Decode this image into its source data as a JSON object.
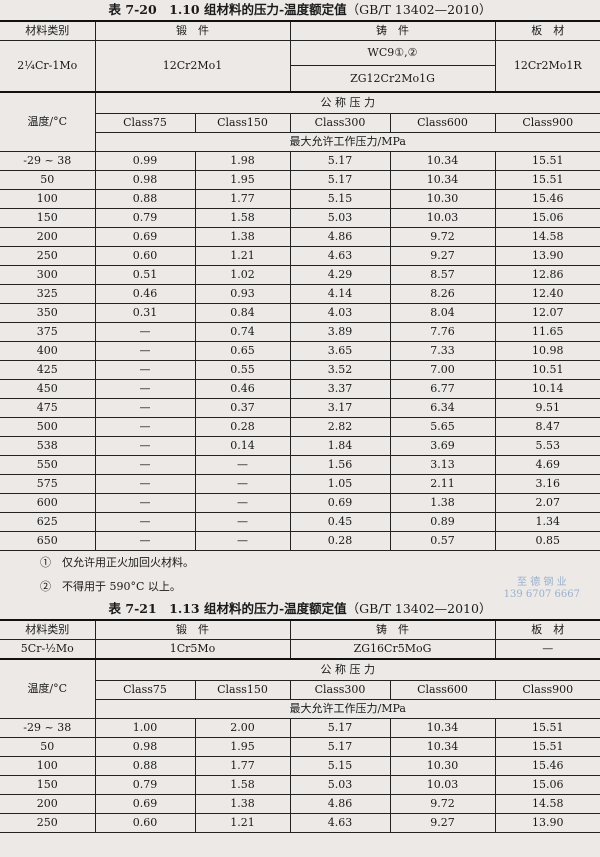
{
  "table1": {
    "title": "表 7-20　1.10 组材料的压力-温度额定值",
    "standard": "（GB/T 13402—2010）",
    "material_label": "材料类别",
    "forging_label": "锻　件",
    "casting_label": "铸　件",
    "plate_label": "板　材",
    "material": "2¼Cr-1Mo",
    "forging": "12Cr2Mo1",
    "casting1": "WC9①,②",
    "casting2": "ZG12Cr2Mo1G",
    "plate": "12Cr2Mo1R",
    "temp_label": "温度/°C",
    "nominal_label": "公 称 压 力",
    "classes": [
      "Class75",
      "Class150",
      "Class300",
      "Class600",
      "Class900"
    ],
    "max_label": "最大允许工作压力/MPa",
    "rows": [
      [
        "-29 ~ 38",
        "0.99",
        "1.98",
        "5.17",
        "10.34",
        "15.51"
      ],
      [
        "50",
        "0.98",
        "1.95",
        "5.17",
        "10.34",
        "15.51"
      ],
      [
        "100",
        "0.88",
        "1.77",
        "5.15",
        "10.30",
        "15.46"
      ],
      [
        "150",
        "0.79",
        "1.58",
        "5.03",
        "10.03",
        "15.06"
      ],
      [
        "200",
        "0.69",
        "1.38",
        "4.86",
        "9.72",
        "14.58"
      ],
      [
        "250",
        "0.60",
        "1.21",
        "4.63",
        "9.27",
        "13.90"
      ],
      [
        "300",
        "0.51",
        "1.02",
        "4.29",
        "8.57",
        "12.86"
      ],
      [
        "325",
        "0.46",
        "0.93",
        "4.14",
        "8.26",
        "12.40"
      ],
      [
        "350",
        "0.31",
        "0.84",
        "4.03",
        "8.04",
        "12.07"
      ],
      [
        "375",
        "—",
        "0.74",
        "3.89",
        "7.76",
        "11.65"
      ],
      [
        "400",
        "—",
        "0.65",
        "3.65",
        "7.33",
        "10.98"
      ],
      [
        "425",
        "—",
        "0.55",
        "3.52",
        "7.00",
        "10.51"
      ],
      [
        "450",
        "—",
        "0.46",
        "3.37",
        "6.77",
        "10.14"
      ],
      [
        "475",
        "—",
        "0.37",
        "3.17",
        "6.34",
        "9.51"
      ],
      [
        "500",
        "—",
        "0.28",
        "2.82",
        "5.65",
        "8.47"
      ],
      [
        "538",
        "—",
        "0.14",
        "1.84",
        "3.69",
        "5.53"
      ],
      [
        "550",
        "—",
        "—",
        "1.56",
        "3.13",
        "4.69"
      ],
      [
        "575",
        "—",
        "—",
        "1.05",
        "2.11",
        "3.16"
      ],
      [
        "600",
        "—",
        "—",
        "0.69",
        "1.38",
        "2.07"
      ],
      [
        "625",
        "—",
        "—",
        "0.45",
        "0.89",
        "1.34"
      ],
      [
        "650",
        "—",
        "—",
        "0.28",
        "0.57",
        "0.85"
      ]
    ]
  },
  "footnotes": [
    "①　仅允许用正火加回火材料。",
    "②　不得用于 590°C 以上。"
  ],
  "watermark": [
    "至 德 钢 业",
    "139 6707 6667"
  ],
  "table2": {
    "title": "表 7-21　1.13 组材料的压力-温度额定值",
    "standard": "（GB/T 13402—2010）",
    "material_label": "材料类别",
    "forging_label": "锻　件",
    "casting_label": "铸　件",
    "plate_label": "板　材",
    "material": "5Cr-½Mo",
    "forging": "1Cr5Mo",
    "casting": "ZG16Cr5MoG",
    "plate": "—",
    "temp_label": "温度/°C",
    "nominal_label": "公 称 压 力",
    "classes": [
      "Class75",
      "Class150",
      "Class300",
      "Class600",
      "Class900"
    ],
    "max_label": "最大允许工作压力/MPa",
    "rows": [
      [
        "-29 ~ 38",
        "1.00",
        "2.00",
        "5.17",
        "10.34",
        "15.51"
      ],
      [
        "50",
        "0.98",
        "1.95",
        "5.17",
        "10.34",
        "15.51"
      ],
      [
        "100",
        "0.88",
        "1.77",
        "5.15",
        "10.30",
        "15.46"
      ],
      [
        "150",
        "0.79",
        "1.58",
        "5.03",
        "10.03",
        "15.06"
      ],
      [
        "200",
        "0.69",
        "1.38",
        "4.86",
        "9.72",
        "14.58"
      ],
      [
        "250",
        "0.60",
        "1.21",
        "4.63",
        "9.27",
        "13.90"
      ]
    ]
  }
}
